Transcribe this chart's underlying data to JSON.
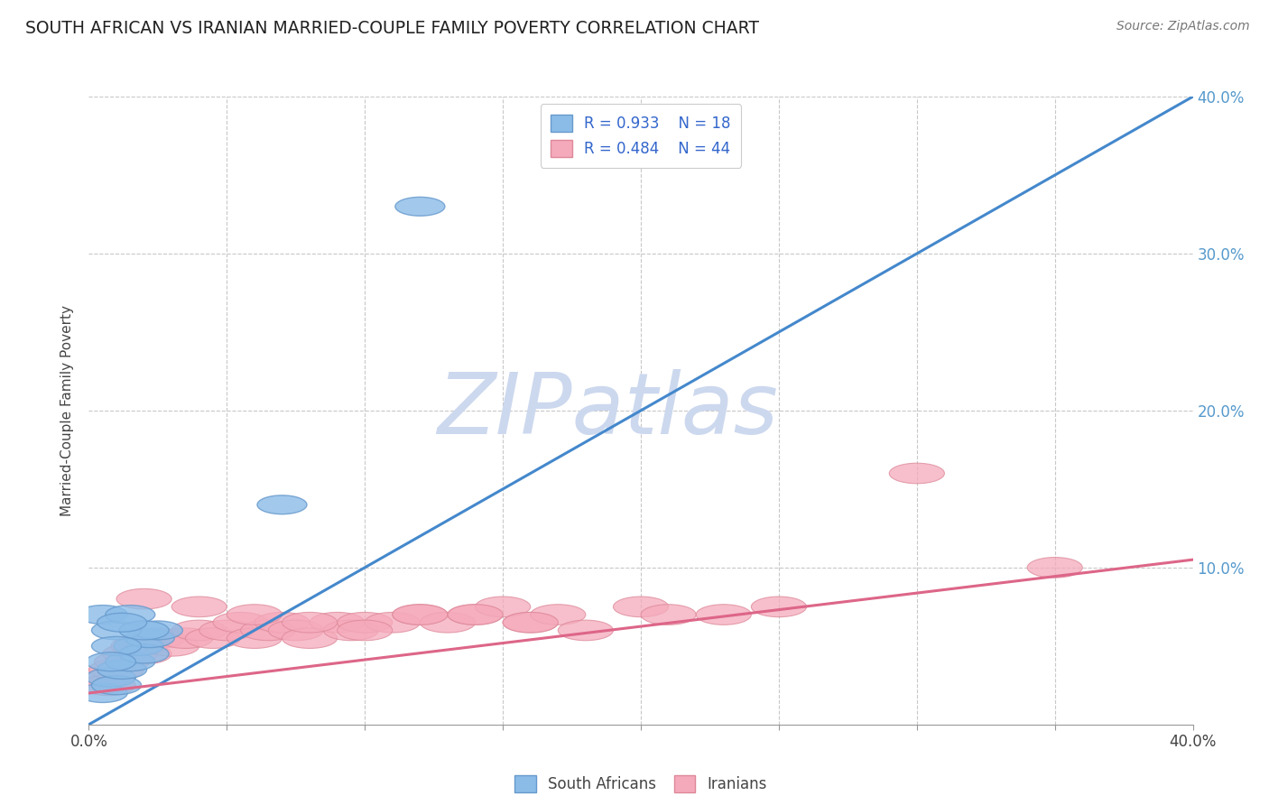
{
  "title": "SOUTH AFRICAN VS IRANIAN MARRIED-COUPLE FAMILY POVERTY CORRELATION CHART",
  "source": "Source: ZipAtlas.com",
  "ylabel": "Married-Couple Family Poverty",
  "xlim": [
    0,
    0.4
  ],
  "ylim": [
    0,
    0.4
  ],
  "background_color": "#ffffff",
  "grid_color": "#c8c8c8",
  "watermark": "ZIPatlas",
  "watermark_color": "#ccd8ee",
  "south_african_color": "#8bbce8",
  "south_african_edge": "#6699cc",
  "iranian_color": "#f5aabb",
  "iranian_edge": "#dd8899",
  "blue_line_color": "#4488cc",
  "pink_line_color": "#dd6688",
  "legend_R_blue": "R = 0.933",
  "legend_N_blue": "N = 18",
  "legend_R_pink": "R = 0.484",
  "legend_N_pink": "N = 44",
  "south_african_x": [
    0.005,
    0.008,
    0.01,
    0.012,
    0.015,
    0.018,
    0.02,
    0.022,
    0.025,
    0.005,
    0.01,
    0.015,
    0.02,
    0.01,
    0.008,
    0.012,
    0.12,
    0.07
  ],
  "south_african_y": [
    0.02,
    0.03,
    0.025,
    0.035,
    0.04,
    0.05,
    0.045,
    0.055,
    0.06,
    0.07,
    0.06,
    0.07,
    0.06,
    0.05,
    0.04,
    0.065,
    0.33,
    0.14
  ],
  "iranian_x": [
    0.005,
    0.007,
    0.01,
    0.012,
    0.015,
    0.018,
    0.02,
    0.025,
    0.03,
    0.035,
    0.04,
    0.045,
    0.05,
    0.055,
    0.06,
    0.065,
    0.07,
    0.075,
    0.08,
    0.09,
    0.095,
    0.1,
    0.11,
    0.12,
    0.13,
    0.14,
    0.15,
    0.16,
    0.17,
    0.18,
    0.2,
    0.21,
    0.23,
    0.25,
    0.3,
    0.02,
    0.04,
    0.06,
    0.08,
    0.1,
    0.12,
    0.14,
    0.16,
    0.35
  ],
  "iranian_y": [
    0.03,
    0.025,
    0.035,
    0.04,
    0.045,
    0.05,
    0.045,
    0.055,
    0.05,
    0.055,
    0.06,
    0.055,
    0.06,
    0.065,
    0.055,
    0.06,
    0.065,
    0.06,
    0.055,
    0.065,
    0.06,
    0.065,
    0.065,
    0.07,
    0.065,
    0.07,
    0.075,
    0.065,
    0.07,
    0.06,
    0.075,
    0.07,
    0.07,
    0.075,
    0.16,
    0.08,
    0.075,
    0.07,
    0.065,
    0.06,
    0.07,
    0.07,
    0.065,
    0.1
  ],
  "blue_line_x": [
    0.0,
    0.4
  ],
  "blue_line_y": [
    0.0,
    0.4
  ],
  "pink_line_x": [
    0.0,
    0.4
  ],
  "pink_line_y": [
    0.02,
    0.105
  ]
}
